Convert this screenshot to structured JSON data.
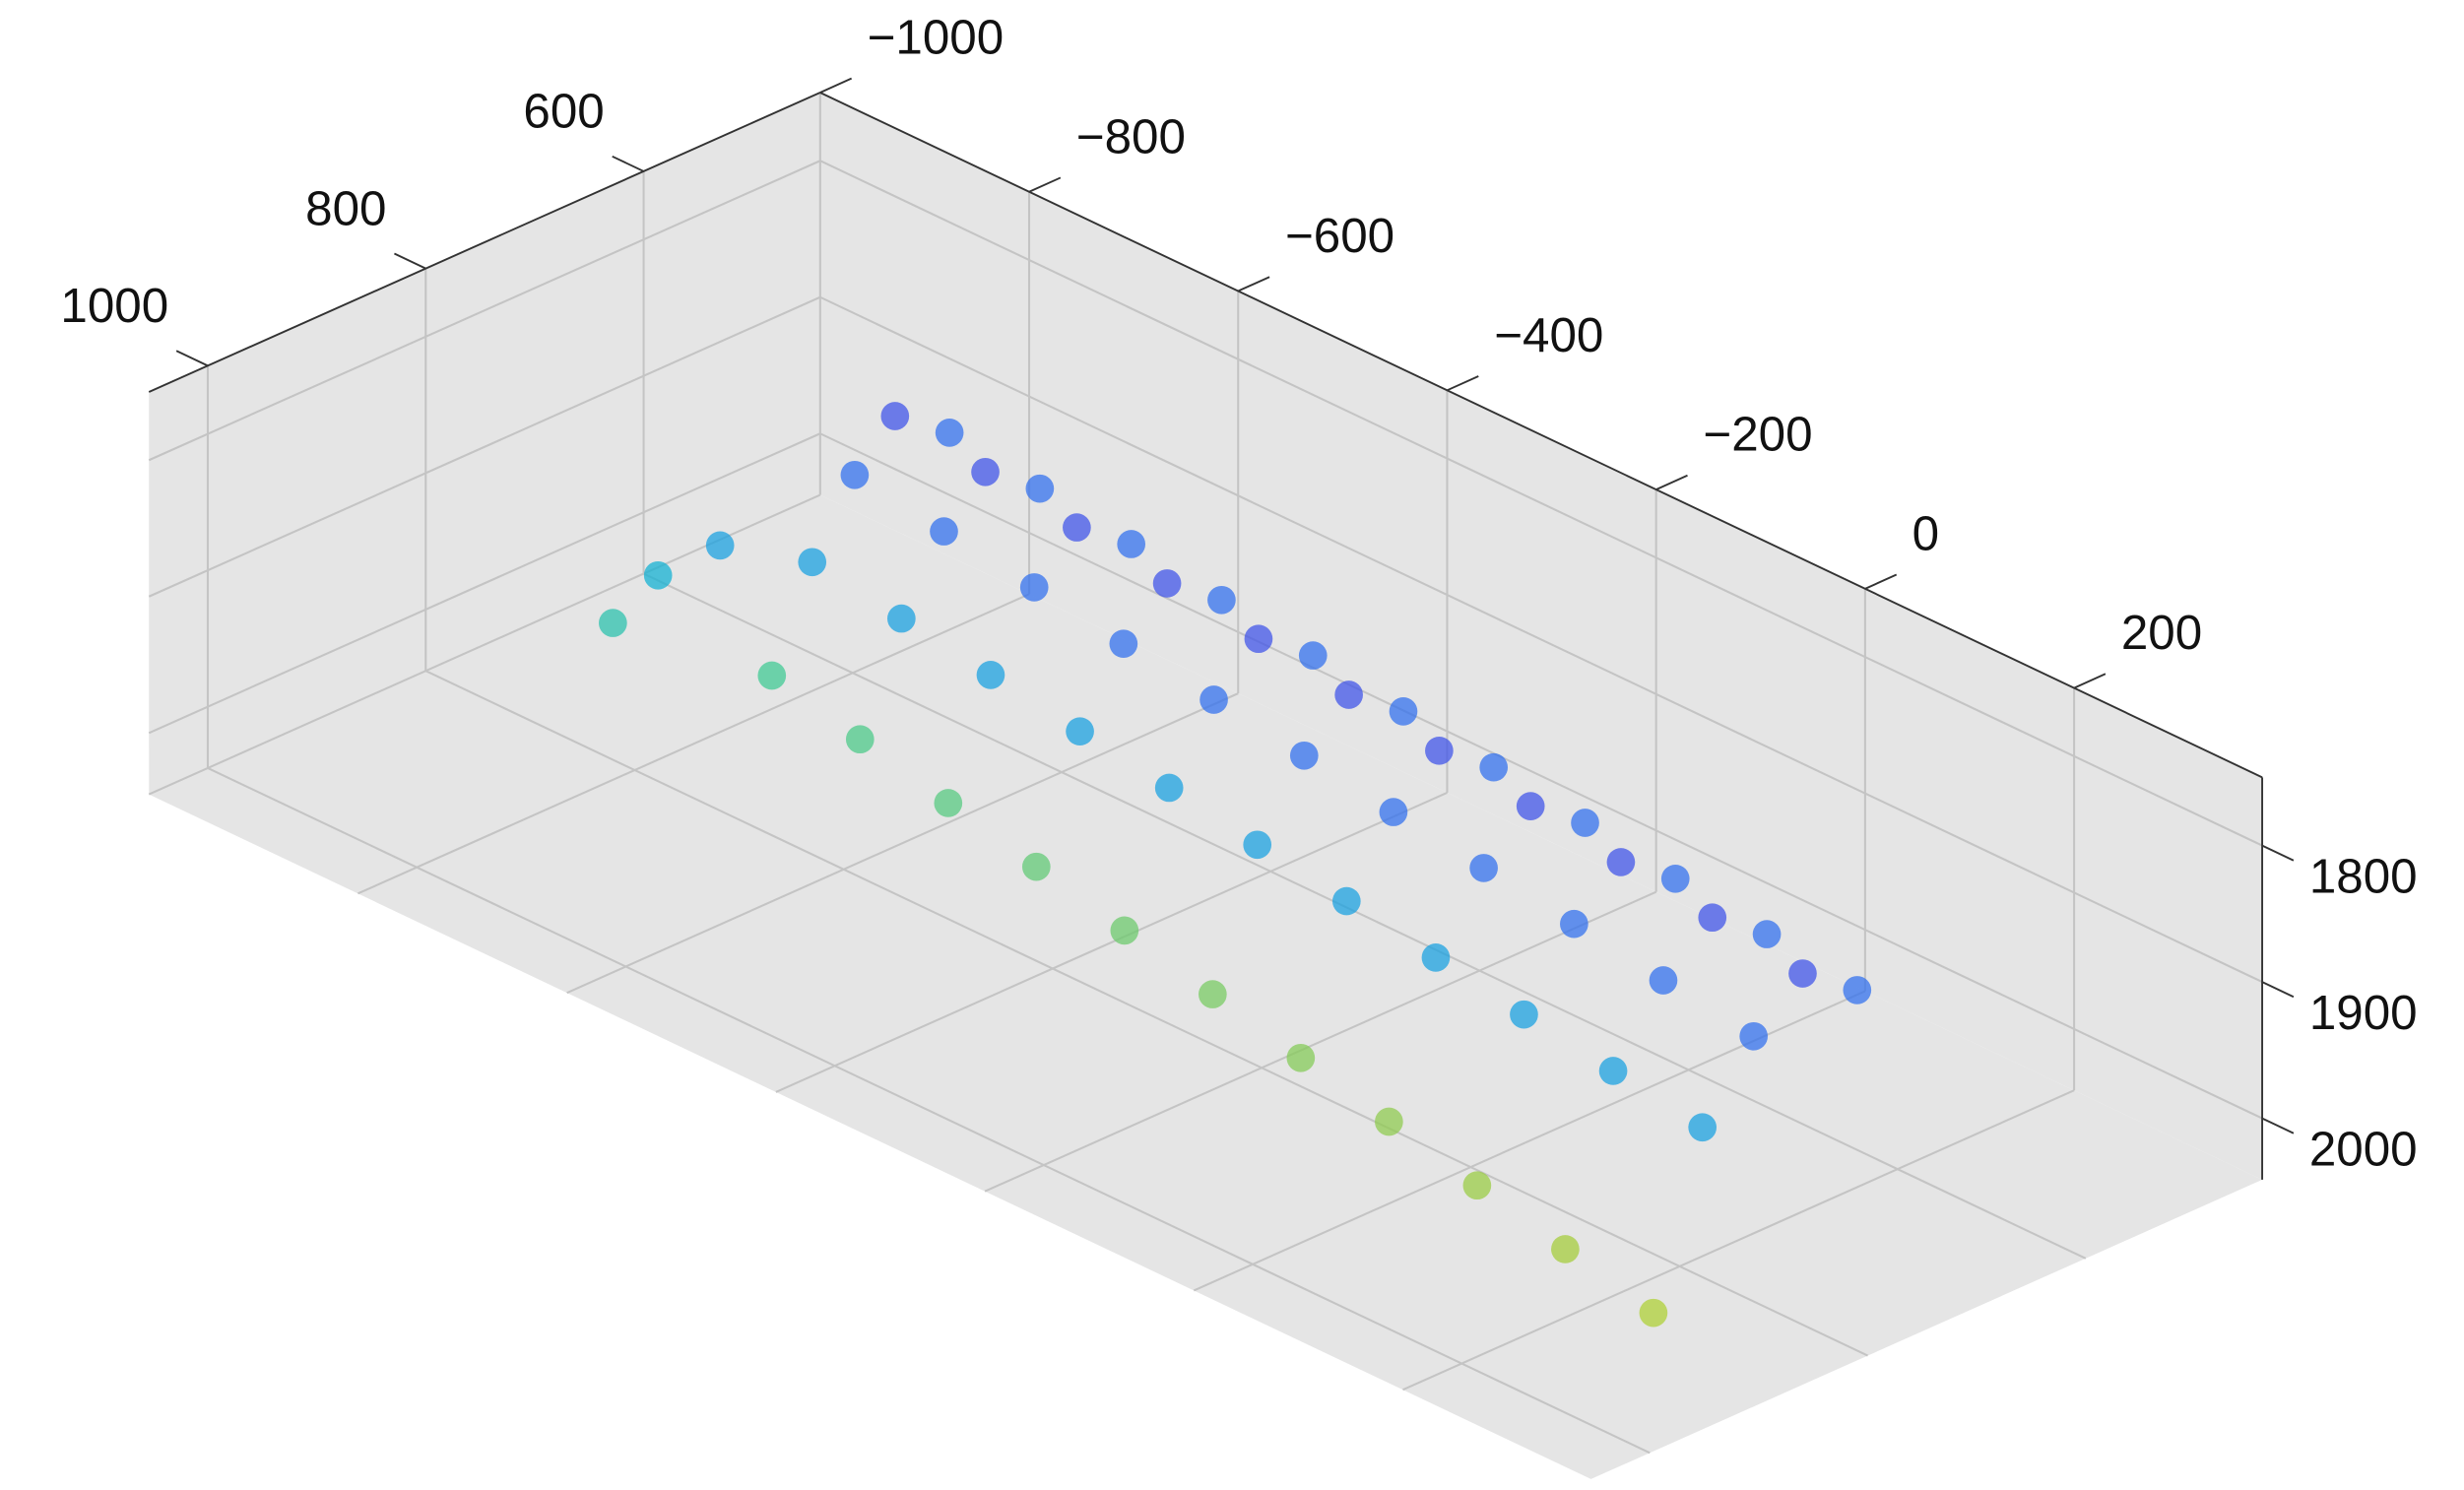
{
  "chart_data": {
    "type": "scatter3d",
    "xlim": [
      438,
      1054
    ],
    "ylim": [
      -1000,
      380
    ],
    "zlim": [
      1750,
      2045
    ],
    "zdir": "reverse",
    "xticks": [
      600,
      800,
      1000
    ],
    "yticks": [
      {
        "value": -1000,
        "label": "−1000"
      },
      {
        "value": -800,
        "label": "−800"
      },
      {
        "value": -600,
        "label": "−600"
      },
      {
        "value": -400,
        "label": "−400"
      },
      {
        "value": -200,
        "label": "−200"
      },
      0,
      200
    ],
    "zticks": [
      1800,
      1900,
      2000
    ],
    "grid": true,
    "background": "#e5e5e5",
    "colormap": [
      "#3e26a8",
      "#4154e8",
      "#2c84f2",
      "#13b1d6",
      "#3ac99a",
      "#a8cc3c",
      "#f9fb0e"
    ],
    "series": [
      {
        "x": [
          607,
          657,
          694,
          733,
          770,
          620,
          670,
          708,
          747,
          785,
          632,
          682,
          721,
          761,
          800,
          645,
          695,
          735,
          775,
          815,
          657,
          707,
          748,
          789,
          830,
          670,
          720,
          761,
          804,
          845,
          683,
          733,
          775,
          818,
          860,
          695,
          745,
          788,
          832,
          875,
          708,
          758,
          801,
          847,
          890,
          720,
          770,
          815,
          861,
          905,
          733,
          783,
          828,
          875,
          920,
          792,
          760,
          820
        ],
        "y": [
          -700,
          -700,
          -700,
          -700,
          -700,
          -600,
          -600,
          -600,
          -600,
          -600,
          -500,
          -500,
          -500,
          -500,
          -500,
          -400,
          -400,
          -400,
          -400,
          -400,
          -300,
          -300,
          -300,
          -300,
          -300,
          -200,
          -200,
          -200,
          -200,
          -200,
          -100,
          -100,
          -100,
          -100,
          -100,
          0,
          0,
          0,
          0,
          0,
          100,
          100,
          100,
          100,
          100,
          200,
          200,
          200,
          200,
          200,
          300,
          300,
          300,
          300,
          300,
          -786,
          -760,
          -800
        ],
        "z": [
          1830,
          1800,
          1830,
          1880,
          1950,
          1830,
          1800,
          1830,
          1880,
          1955,
          1830,
          1800,
          1830,
          1880,
          1960,
          1830,
          1800,
          1830,
          1880,
          1965,
          1830,
          1800,
          1830,
          1880,
          1970,
          1830,
          1800,
          1830,
          1880,
          1975,
          1830,
          1800,
          1830,
          1880,
          1980,
          1830,
          1800,
          1830,
          1880,
          1985,
          1830,
          1800,
          1830,
          1880,
          1990,
          1830,
          1800,
          1830,
          1880,
          1995,
          1830,
          1800,
          1830,
          1880,
          2000,
          1900,
          1880,
          1930
        ]
      }
    ]
  }
}
